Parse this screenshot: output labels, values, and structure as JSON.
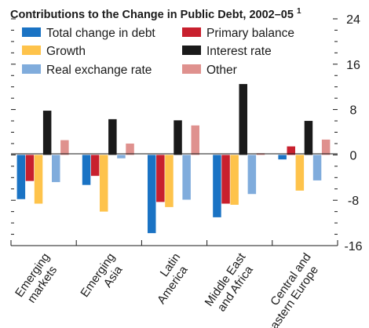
{
  "chart_data": {
    "type": "bar",
    "title": "Contributions to the Change in Public Debt, 2002–05",
    "title_superscript": "1",
    "xlabel": "",
    "ylabel": "",
    "ylim": [
      -16,
      24
    ],
    "yticks": [
      -16,
      -8,
      0,
      8,
      16,
      24
    ],
    "grid": false,
    "legend_position": "top-left",
    "categories": [
      [
        "Emerging",
        "markets"
      ],
      [
        "Emerging",
        "Asia"
      ],
      [
        "Latin",
        "America"
      ],
      [
        "Middle East",
        "and Africa"
      ],
      [
        "Central and",
        "eastern Europe"
      ]
    ],
    "series": [
      {
        "name": "Total change in debt",
        "color": "#1a73c4",
        "values": [
          -7.8,
          -5.3,
          -13.8,
          -11.0,
          -0.8
        ]
      },
      {
        "name": "Primary balance",
        "color": "#c8202e",
        "values": [
          -4.6,
          -3.7,
          -8.3,
          -8.6,
          1.5
        ]
      },
      {
        "name": "Growth",
        "color": "#fec34b",
        "values": [
          -8.6,
          -10.0,
          -9.2,
          -8.8,
          -6.3
        ]
      },
      {
        "name": "Interest rate",
        "color": "#1a1a1a",
        "values": [
          7.8,
          6.3,
          6.1,
          12.5,
          6.0
        ]
      },
      {
        "name": "Real exchange rate",
        "color": "#80acdc",
        "values": [
          -4.8,
          -0.6,
          -7.9,
          -6.9,
          -4.5
        ]
      },
      {
        "name": "Other",
        "color": "#df918e",
        "values": [
          2.6,
          2.0,
          5.2,
          0.3,
          2.7
        ]
      }
    ]
  }
}
